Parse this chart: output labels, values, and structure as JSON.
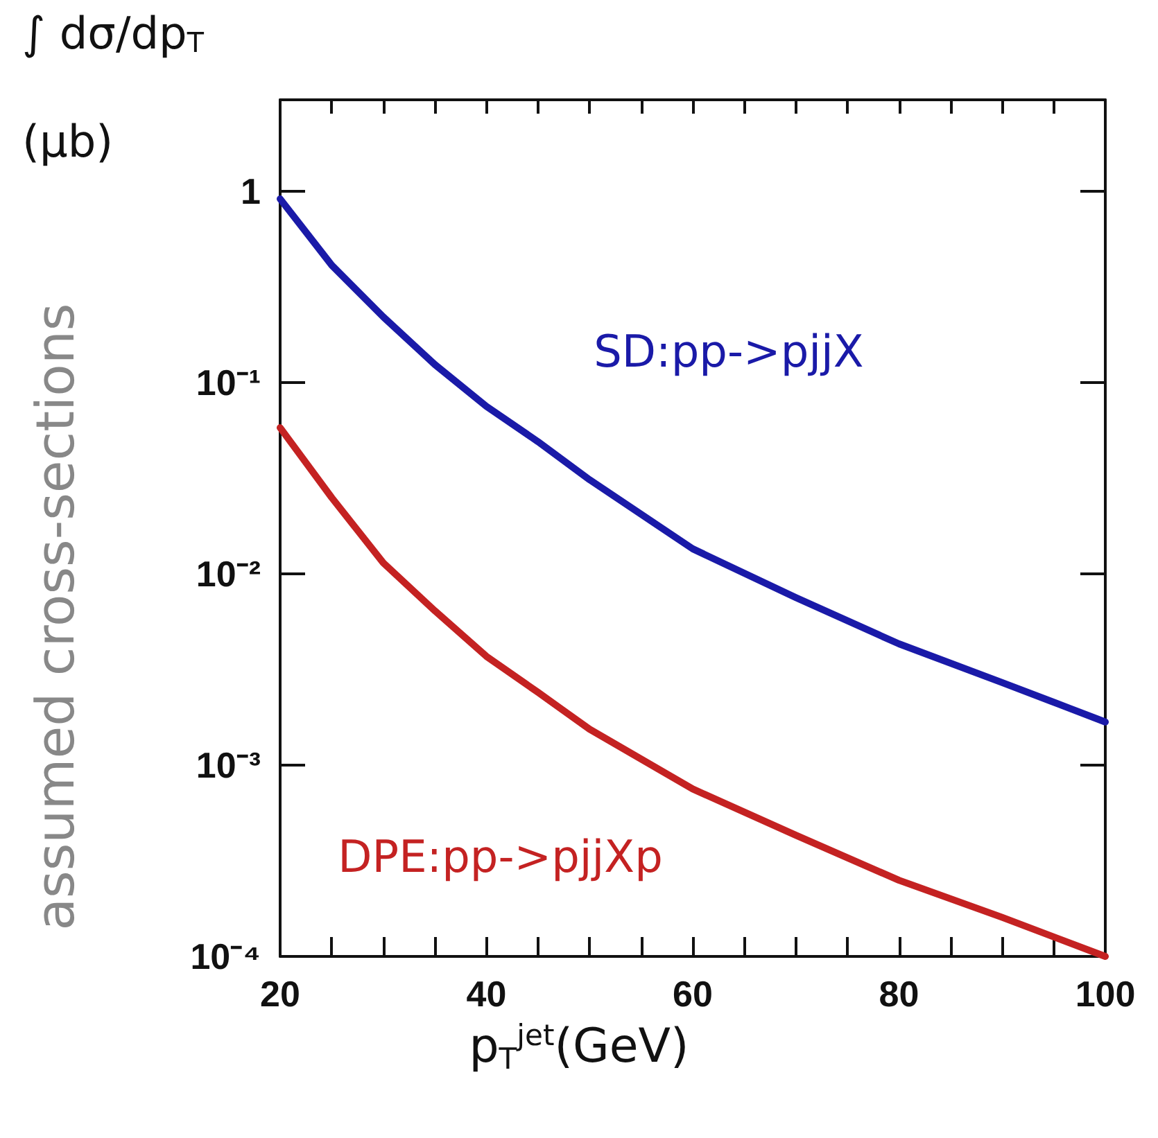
{
  "chart_data": {
    "type": "line",
    "ylabel": "∫ dσ/dp$_{T}$\n(μb)",
    "xlabel": "p$_{T}$$^{jet}$(GeV)",
    "annotations": [
      "assumed cross-sections"
    ],
    "log": "y",
    "grid": false,
    "legend": false,
    "marker": "none",
    "line_style": "solid",
    "xlim": [
      20,
      100
    ],
    "ylim": [
      0.0001,
      3
    ],
    "xticks": [
      20,
      {
        "value": 25,
        "label": null
      },
      {
        "value": 30,
        "label": null
      },
      {
        "value": 35,
        "label": null
      },
      40,
      {
        "value": 45,
        "label": null
      },
      {
        "value": 50,
        "label": null
      },
      {
        "value": 55,
        "label": null
      },
      60,
      {
        "value": 65,
        "label": null
      },
      {
        "value": 70,
        "label": null
      },
      {
        "value": 75,
        "label": null
      },
      80,
      {
        "value": 85,
        "label": null
      },
      {
        "value": 90,
        "label": null
      },
      {
        "value": 95,
        "label": null
      },
      100
    ],
    "yticks": [
      {
        "value": 0.0001,
        "label": "10⁻⁴"
      },
      {
        "value": 0.001,
        "label": "10⁻³"
      },
      {
        "value": 0.01,
        "label": "10⁻²"
      },
      {
        "value": 0.1,
        "label": "10⁻¹"
      },
      1
    ],
    "x": [
      20,
      25,
      30,
      35,
      40,
      45,
      50,
      60,
      70,
      80,
      90,
      100
    ],
    "series": [
      {
        "name": "SD:pp->pjjX",
        "color": "#1a1aa8",
        "values": [
          0.91,
          0.41,
          0.22,
          0.124,
          0.075,
          0.049,
          0.031,
          0.0135,
          0.0075,
          0.0043,
          0.0027,
          0.00168
        ]
      },
      {
        "name": "DPE:pp->pjjXp",
        "color": "#c42222",
        "values": [
          0.058,
          0.025,
          0.0114,
          0.0064,
          0.0037,
          0.0024,
          0.00154,
          0.00075,
          0.00043,
          0.00025,
          0.00016,
          0.0001
        ]
      }
    ]
  }
}
